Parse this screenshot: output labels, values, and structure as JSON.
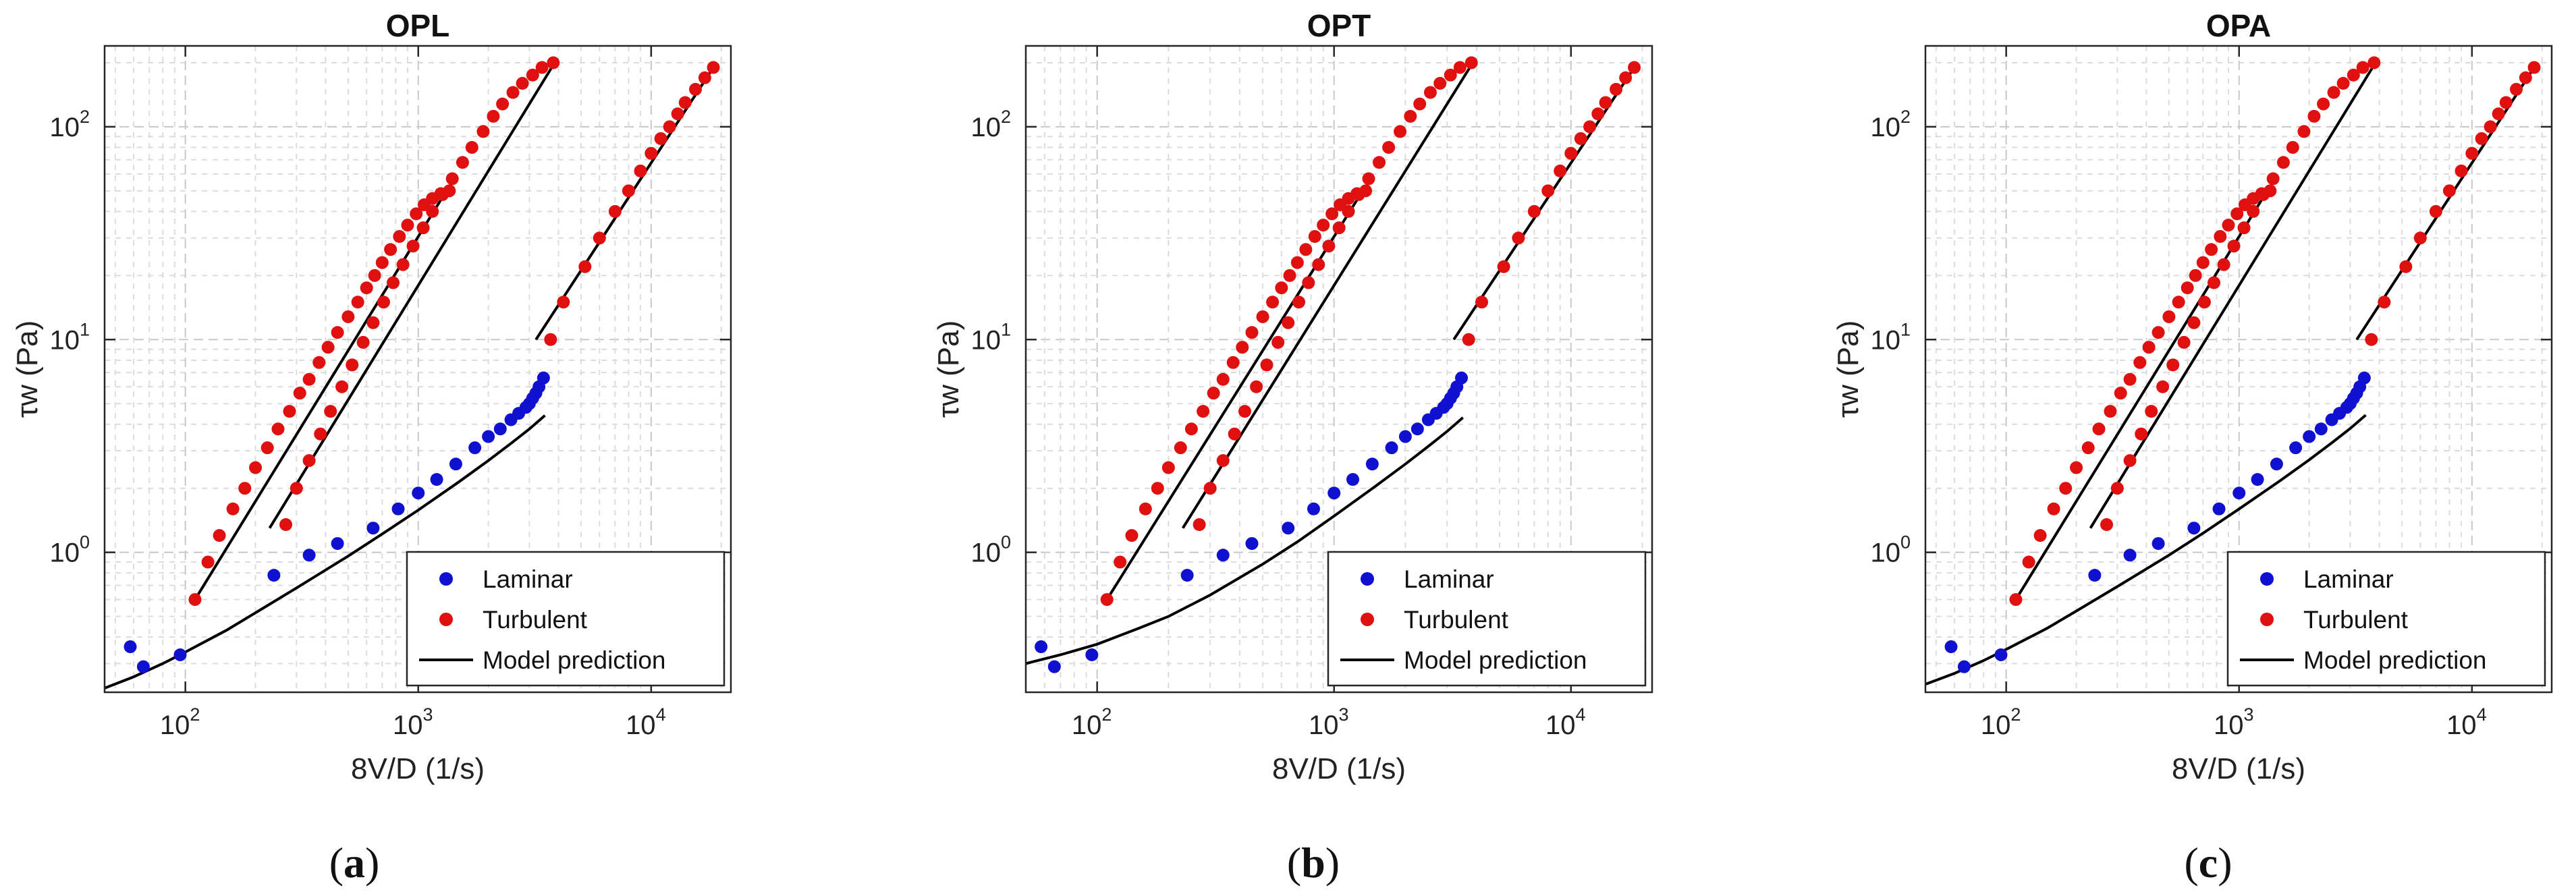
{
  "figure": {
    "captions": [
      "a",
      "b",
      "c"
    ]
  },
  "chart_data": [
    {
      "type": "scatter",
      "title": "OPL",
      "xlabel": "8V/D (1/s)",
      "ylabel": "τw (Pa)",
      "xscale": "log",
      "yscale": "log",
      "xlim": [
        45,
        22000
      ],
      "ylim": [
        0.22,
        240
      ],
      "xticks": [
        {
          "base": "10",
          "exp": "2",
          "value": 100
        },
        {
          "base": "10",
          "exp": "3",
          "value": 1000
        },
        {
          "base": "10",
          "exp": "4",
          "value": 10000
        }
      ],
      "yticks": [
        {
          "base": "10",
          "exp": "0",
          "value": 1
        },
        {
          "base": "10",
          "exp": "1",
          "value": 10
        },
        {
          "base": "10",
          "exp": "2",
          "value": 100
        }
      ],
      "grid": true,
      "legend": {
        "position": "bottom-right",
        "entries": [
          "Laminar",
          "Turbulent",
          "Model prediction"
        ]
      },
      "colors": {
        "laminar": "#1010d0",
        "turbulent": "#e01010",
        "model": "#000000"
      },
      "series": [
        {
          "name": "Laminar",
          "kind": "points",
          "x": [
            58,
            66,
            95,
            240,
            340,
            450,
            640,
            820,
            1000,
            1200,
            1450,
            1750,
            2000,
            2250,
            2500,
            2700,
            2900,
            3000,
            3100,
            3200,
            3300,
            3450
          ],
          "y": [
            0.36,
            0.29,
            0.33,
            0.78,
            0.97,
            1.1,
            1.3,
            1.6,
            1.9,
            2.2,
            2.6,
            3.1,
            3.5,
            3.8,
            4.2,
            4.5,
            4.8,
            5.0,
            5.3,
            5.6,
            6.0,
            6.6
          ]
        },
        {
          "name": "Turbulent",
          "kind": "points",
          "x": [
            110,
            125,
            140,
            160,
            180,
            200,
            225,
            250,
            280,
            310,
            340,
            375,
            410,
            450,
            500,
            550,
            600,
            650,
            700,
            760,
            830,
            900,
            980,
            1060,
            1150,
            1250,
            1360,
            270,
            300,
            340,
            380,
            420,
            470,
            520,
            580,
            640,
            710,
            780,
            860,
            950,
            1050,
            1150,
            1270,
            1400,
            1550,
            1700,
            1900,
            2100,
            2300,
            2550,
            2800,
            3100,
            3400,
            3800,
            3700,
            4200,
            5200,
            6000,
            7000,
            8000,
            9000,
            10000,
            11000,
            12000,
            13000,
            14000,
            15500,
            17000,
            18500
          ],
          "y": [
            0.6,
            0.9,
            1.2,
            1.6,
            2.0,
            2.5,
            3.1,
            3.8,
            4.6,
            5.6,
            6.5,
            7.8,
            9.2,
            10.8,
            12.8,
            15.0,
            17.5,
            20.0,
            23.0,
            26.5,
            30.5,
            34.5,
            39.0,
            43.0,
            46.0,
            48.5,
            50.0,
            1.35,
            2.0,
            2.7,
            3.6,
            4.6,
            6.0,
            7.6,
            9.7,
            12.0,
            15.0,
            18.5,
            22.5,
            27.5,
            33.5,
            40.0,
            48.0,
            57.0,
            68.0,
            80.0,
            95.0,
            112.0,
            128.0,
            145.0,
            160.0,
            175.0,
            190.0,
            200.0,
            10.0,
            15.0,
            22.0,
            30.0,
            40.0,
            50.0,
            62.0,
            75.0,
            88.0,
            100.0,
            115.0,
            130.0,
            150.0,
            170.0,
            190.0
          ]
        },
        {
          "name": "Model prediction",
          "kind": "curve",
          "x": [
            45,
            60,
            80,
            100,
            150,
            200,
            300,
            500,
            700,
            1000,
            1500,
            2000,
            2500,
            3000,
            3500
          ],
          "y": [
            0.23,
            0.26,
            0.3,
            0.34,
            0.43,
            0.52,
            0.68,
            0.96,
            1.22,
            1.58,
            2.15,
            2.7,
            3.25,
            3.8,
            4.4
          ]
        },
        {
          "name": "Model prediction",
          "kind": "line",
          "x": [
            110,
            1350
          ],
          "y": [
            0.6,
            52
          ]
        },
        {
          "name": "Model prediction",
          "kind": "line",
          "x": [
            230,
            3850
          ],
          "y": [
            1.3,
            200
          ]
        },
        {
          "name": "Model prediction",
          "kind": "line",
          "x": [
            3200,
            18500
          ],
          "y": [
            10,
            190
          ]
        }
      ]
    },
    {
      "type": "scatter",
      "title": "OPT",
      "xlabel": "8V/D (1/s)",
      "ylabel": "τw (Pa)",
      "xscale": "log",
      "yscale": "log",
      "xlim": [
        50,
        22000
      ],
      "ylim": [
        0.22,
        240
      ],
      "xticks": [
        {
          "base": "10",
          "exp": "2",
          "value": 100
        },
        {
          "base": "10",
          "exp": "3",
          "value": 1000
        },
        {
          "base": "10",
          "exp": "4",
          "value": 10000
        }
      ],
      "yticks": [
        {
          "base": "10",
          "exp": "0",
          "value": 1
        },
        {
          "base": "10",
          "exp": "1",
          "value": 10
        },
        {
          "base": "10",
          "exp": "2",
          "value": 100
        }
      ],
      "grid": true,
      "legend": {
        "position": "bottom-right",
        "entries": [
          "Laminar",
          "Turbulent",
          "Model prediction"
        ]
      },
      "colors": {
        "laminar": "#1010d0",
        "turbulent": "#e01010",
        "model": "#000000"
      },
      "series": [
        {
          "name": "Laminar",
          "kind": "points",
          "x": [
            58,
            66,
            95,
            240,
            340,
            450,
            640,
            820,
            1000,
            1200,
            1450,
            1750,
            2000,
            2250,
            2500,
            2700,
            2900,
            3000,
            3100,
            3200,
            3300,
            3450
          ],
          "y": [
            0.36,
            0.29,
            0.33,
            0.78,
            0.97,
            1.1,
            1.3,
            1.6,
            1.9,
            2.2,
            2.6,
            3.1,
            3.5,
            3.8,
            4.2,
            4.5,
            4.8,
            5.0,
            5.3,
            5.6,
            6.0,
            6.6
          ]
        },
        {
          "name": "Turbulent",
          "kind": "points",
          "x": [
            110,
            125,
            140,
            160,
            180,
            200,
            225,
            250,
            280,
            310,
            340,
            375,
            410,
            450,
            500,
            550,
            600,
            650,
            700,
            760,
            830,
            900,
            980,
            1060,
            1150,
            1250,
            1360,
            270,
            300,
            340,
            380,
            420,
            470,
            520,
            580,
            640,
            710,
            780,
            860,
            950,
            1050,
            1150,
            1270,
            1400,
            1550,
            1700,
            1900,
            2100,
            2300,
            2550,
            2800,
            3100,
            3400,
            3800,
            3700,
            4200,
            5200,
            6000,
            7000,
            8000,
            9000,
            10000,
            11000,
            12000,
            13000,
            14000,
            15500,
            17000,
            18500
          ],
          "y": [
            0.6,
            0.9,
            1.2,
            1.6,
            2.0,
            2.5,
            3.1,
            3.8,
            4.6,
            5.6,
            6.5,
            7.8,
            9.2,
            10.8,
            12.8,
            15.0,
            17.5,
            20.0,
            23.0,
            26.5,
            30.5,
            34.5,
            39.0,
            43.0,
            46.0,
            48.5,
            50.0,
            1.35,
            2.0,
            2.7,
            3.6,
            4.6,
            6.0,
            7.6,
            9.7,
            12.0,
            15.0,
            18.5,
            22.5,
            27.5,
            33.5,
            40.0,
            48.0,
            57.0,
            68.0,
            80.0,
            95.0,
            112.0,
            128.0,
            145.0,
            160.0,
            175.0,
            190.0,
            200.0,
            10.0,
            15.0,
            22.0,
            30.0,
            40.0,
            50.0,
            62.0,
            75.0,
            88.0,
            100.0,
            115.0,
            130.0,
            150.0,
            170.0,
            190.0
          ]
        },
        {
          "name": "Model prediction",
          "kind": "curve",
          "x": [
            50,
            70,
            100,
            150,
            200,
            300,
            500,
            700,
            1000,
            1500,
            2000,
            2500,
            3000,
            3500
          ],
          "y": [
            0.3,
            0.33,
            0.37,
            0.44,
            0.5,
            0.63,
            0.88,
            1.12,
            1.48,
            2.05,
            2.6,
            3.15,
            3.7,
            4.3
          ]
        },
        {
          "name": "Model prediction",
          "kind": "line",
          "x": [
            110,
            1350
          ],
          "y": [
            0.6,
            52
          ]
        },
        {
          "name": "Model prediction",
          "kind": "line",
          "x": [
            230,
            3850
          ],
          "y": [
            1.3,
            200
          ]
        },
        {
          "name": "Model prediction",
          "kind": "line",
          "x": [
            3200,
            18500
          ],
          "y": [
            10,
            190
          ]
        }
      ]
    },
    {
      "type": "scatter",
      "title": "OPA",
      "xlabel": "8V/D (1/s)",
      "ylabel": "τw (Pa)",
      "xscale": "log",
      "yscale": "log",
      "xlim": [
        45,
        22000
      ],
      "ylim": [
        0.22,
        240
      ],
      "xticks": [
        {
          "base": "10",
          "exp": "2",
          "value": 100
        },
        {
          "base": "10",
          "exp": "3",
          "value": 1000
        },
        {
          "base": "10",
          "exp": "4",
          "value": 10000
        }
      ],
      "yticks": [
        {
          "base": "10",
          "exp": "0",
          "value": 1
        },
        {
          "base": "10",
          "exp": "1",
          "value": 10
        },
        {
          "base": "10",
          "exp": "2",
          "value": 100
        }
      ],
      "grid": true,
      "legend": {
        "position": "bottom-right",
        "entries": [
          "Laminar",
          "Turbulent",
          "Model prediction"
        ]
      },
      "colors": {
        "laminar": "#1010d0",
        "turbulent": "#e01010",
        "model": "#000000"
      },
      "series": [
        {
          "name": "Laminar",
          "kind": "points",
          "x": [
            58,
            66,
            95,
            240,
            340,
            450,
            640,
            820,
            1000,
            1200,
            1450,
            1750,
            2000,
            2250,
            2500,
            2700,
            2900,
            3000,
            3100,
            3200,
            3300,
            3450
          ],
          "y": [
            0.36,
            0.29,
            0.33,
            0.78,
            0.97,
            1.1,
            1.3,
            1.6,
            1.9,
            2.2,
            2.6,
            3.1,
            3.5,
            3.8,
            4.2,
            4.5,
            4.8,
            5.0,
            5.3,
            5.6,
            6.0,
            6.6
          ]
        },
        {
          "name": "Turbulent",
          "kind": "points",
          "x": [
            110,
            125,
            140,
            160,
            180,
            200,
            225,
            250,
            280,
            310,
            340,
            375,
            410,
            450,
            500,
            550,
            600,
            650,
            700,
            760,
            830,
            900,
            980,
            1060,
            1150,
            1250,
            1360,
            270,
            300,
            340,
            380,
            420,
            470,
            520,
            580,
            640,
            710,
            780,
            860,
            950,
            1050,
            1150,
            1270,
            1400,
            1550,
            1700,
            1900,
            2100,
            2300,
            2550,
            2800,
            3100,
            3400,
            3800,
            3700,
            4200,
            5200,
            6000,
            7000,
            8000,
            9000,
            10000,
            11000,
            12000,
            13000,
            14000,
            15500,
            17000,
            18500
          ],
          "y": [
            0.6,
            0.9,
            1.2,
            1.6,
            2.0,
            2.5,
            3.1,
            3.8,
            4.6,
            5.6,
            6.5,
            7.8,
            9.2,
            10.8,
            12.8,
            15.0,
            17.5,
            20.0,
            23.0,
            26.5,
            30.5,
            34.5,
            39.0,
            43.0,
            46.0,
            48.5,
            50.0,
            1.35,
            2.0,
            2.7,
            3.6,
            4.6,
            6.0,
            7.6,
            9.7,
            12.0,
            15.0,
            18.5,
            22.5,
            27.5,
            33.5,
            40.0,
            48.0,
            57.0,
            68.0,
            80.0,
            95.0,
            112.0,
            128.0,
            145.0,
            160.0,
            175.0,
            190.0,
            200.0,
            10.0,
            15.0,
            22.0,
            30.0,
            40.0,
            50.0,
            62.0,
            75.0,
            88.0,
            100.0,
            115.0,
            130.0,
            150.0,
            170.0,
            190.0
          ]
        },
        {
          "name": "Model prediction",
          "kind": "curve",
          "x": [
            45,
            60,
            80,
            100,
            150,
            200,
            300,
            500,
            700,
            1000,
            1500,
            2000,
            2500,
            3000,
            3500
          ],
          "y": [
            0.24,
            0.27,
            0.31,
            0.35,
            0.44,
            0.53,
            0.69,
            0.97,
            1.23,
            1.6,
            2.17,
            2.72,
            3.27,
            3.82,
            4.42
          ]
        },
        {
          "name": "Model prediction",
          "kind": "line",
          "x": [
            110,
            1350
          ],
          "y": [
            0.6,
            52
          ]
        },
        {
          "name": "Model prediction",
          "kind": "line",
          "x": [
            230,
            3850
          ],
          "y": [
            1.3,
            200
          ]
        },
        {
          "name": "Model prediction",
          "kind": "line",
          "x": [
            3200,
            18500
          ],
          "y": [
            10,
            190
          ]
        }
      ]
    }
  ]
}
